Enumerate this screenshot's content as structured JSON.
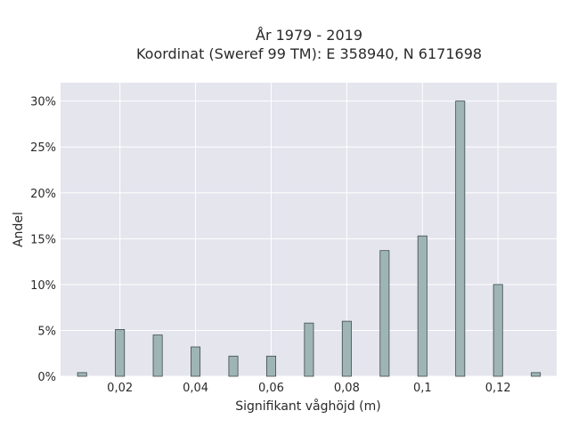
{
  "chart_data": {
    "type": "bar",
    "title": "År 1979 - 2019",
    "subtitle": "Koordinat (Sweref 99 TM): E 358940, N 6171698",
    "xlabel": "Signifikant våghöjd (m)",
    "ylabel": "Andel",
    "xlim": [
      0.0043,
      0.1355
    ],
    "ylim": [
      0,
      0.32
    ],
    "x_ticks": [
      {
        "value": 0.02,
        "label": "0,02"
      },
      {
        "value": 0.04,
        "label": "0,04"
      },
      {
        "value": 0.06,
        "label": "0,06"
      },
      {
        "value": 0.08,
        "label": "0,08"
      },
      {
        "value": 0.1,
        "label": "0,1"
      },
      {
        "value": 0.12,
        "label": "0,12"
      }
    ],
    "y_ticks": [
      {
        "value": 0,
        "label": "0%"
      },
      {
        "value": 0.05,
        "label": "5%"
      },
      {
        "value": 0.1,
        "label": "10%"
      },
      {
        "value": 0.15,
        "label": "15%"
      },
      {
        "value": 0.2,
        "label": "20%"
      },
      {
        "value": 0.25,
        "label": "25%"
      },
      {
        "value": 0.3,
        "label": "30%"
      }
    ],
    "x": [
      0.01,
      0.02,
      0.03,
      0.04,
      0.05,
      0.06,
      0.07,
      0.08,
      0.09,
      0.1,
      0.11,
      0.12,
      0.13
    ],
    "values": [
      0.004,
      0.051,
      0.045,
      0.032,
      0.022,
      0.022,
      0.058,
      0.06,
      0.137,
      0.153,
      0.3,
      0.1,
      0.004
    ],
    "bar_width": 0.0024,
    "grid": true,
    "legend": "none",
    "colors": {
      "plot_background": "#e5e5ee",
      "grid": "#ffffff",
      "bar_fill": "#9fb5b5",
      "bar_stroke": "#3c4a4a"
    }
  }
}
